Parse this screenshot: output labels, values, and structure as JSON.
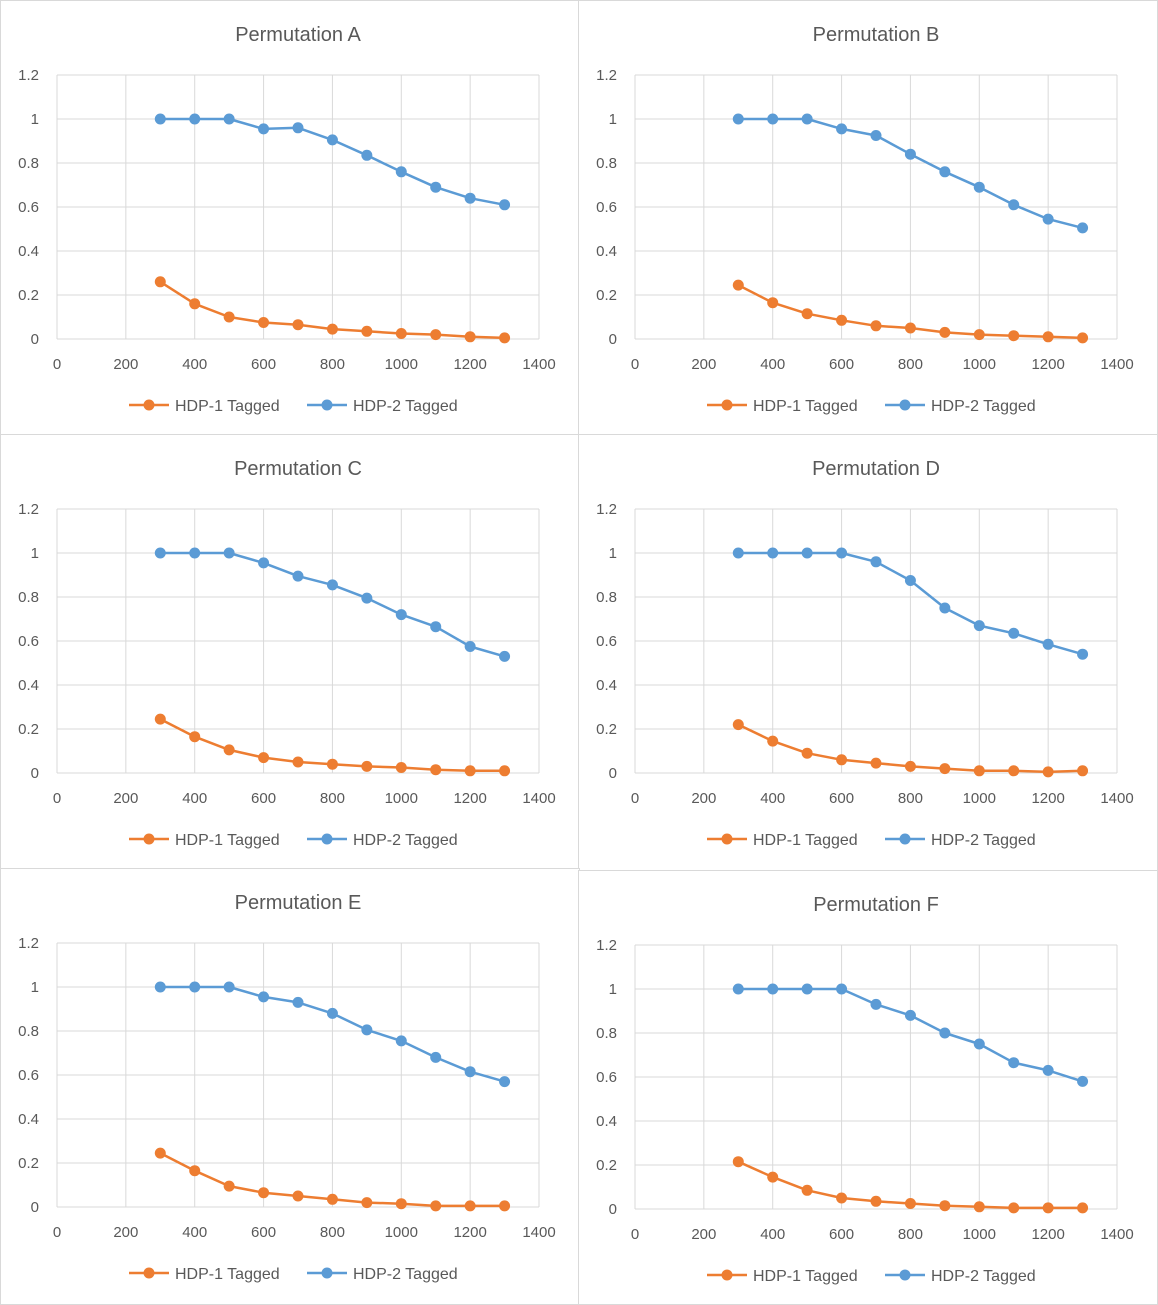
{
  "colors": {
    "hdp1": "#ED7D31",
    "hdp2": "#5B9BD5",
    "grid": "#d9d9d9",
    "text": "#595959"
  },
  "chart_data": [
    {
      "type": "line",
      "title": "Permutation A",
      "xlim": [
        0,
        1400
      ],
      "ylim": [
        0,
        1.2
      ],
      "x_ticks": [
        "0",
        "200",
        "400",
        "600",
        "800",
        "1000",
        "1200",
        "1400"
      ],
      "y_ticks": [
        "0",
        "0.2",
        "0.4",
        "0.6",
        "0.8",
        "1",
        "1.2"
      ],
      "legend": "bottom",
      "x": [
        300,
        400,
        500,
        600,
        700,
        800,
        900,
        1000,
        1100,
        1200,
        1300
      ],
      "series": [
        {
          "name": "HDP-1 Tagged",
          "values": [
            0.26,
            0.16,
            0.1,
            0.075,
            0.065,
            0.045,
            0.035,
            0.025,
            0.02,
            0.01,
            0.005
          ]
        },
        {
          "name": "HDP-2 Tagged",
          "values": [
            1.0,
            1.0,
            1.0,
            0.955,
            0.96,
            0.905,
            0.835,
            0.76,
            0.69,
            0.64,
            0.61
          ]
        }
      ]
    },
    {
      "type": "line",
      "title": "Permutation B",
      "xlim": [
        0,
        1400
      ],
      "ylim": [
        0,
        1.2
      ],
      "x_ticks": [
        "0",
        "200",
        "400",
        "600",
        "800",
        "1000",
        "1200",
        "1400"
      ],
      "y_ticks": [
        "0",
        "0.2",
        "0.4",
        "0.6",
        "0.8",
        "1",
        "1.2"
      ],
      "legend": "bottom",
      "x": [
        300,
        400,
        500,
        600,
        700,
        800,
        900,
        1000,
        1100,
        1200,
        1300
      ],
      "series": [
        {
          "name": "HDP-1 Tagged",
          "values": [
            0.245,
            0.165,
            0.115,
            0.085,
            0.06,
            0.05,
            0.03,
            0.02,
            0.015,
            0.01,
            0.005
          ]
        },
        {
          "name": "HDP-2 Tagged",
          "values": [
            1.0,
            1.0,
            1.0,
            0.955,
            0.925,
            0.84,
            0.76,
            0.69,
            0.61,
            0.545,
            0.505
          ]
        }
      ]
    },
    {
      "type": "line",
      "title": "Permutation C",
      "xlim": [
        0,
        1400
      ],
      "ylim": [
        0,
        1.2
      ],
      "x_ticks": [
        "0",
        "200",
        "400",
        "600",
        "800",
        "1000",
        "1200",
        "1400"
      ],
      "y_ticks": [
        "0",
        "0.2",
        "0.4",
        "0.6",
        "0.8",
        "1",
        "1.2"
      ],
      "legend": "bottom",
      "x": [
        300,
        400,
        500,
        600,
        700,
        800,
        900,
        1000,
        1100,
        1200,
        1300
      ],
      "series": [
        {
          "name": "HDP-1 Tagged",
          "values": [
            0.245,
            0.165,
            0.105,
            0.07,
            0.05,
            0.04,
            0.03,
            0.025,
            0.015,
            0.01,
            0.01
          ]
        },
        {
          "name": "HDP-2 Tagged",
          "values": [
            1.0,
            1.0,
            1.0,
            0.955,
            0.895,
            0.855,
            0.795,
            0.72,
            0.665,
            0.575,
            0.53
          ]
        }
      ]
    },
    {
      "type": "line",
      "title": "Permutation D",
      "xlim": [
        0,
        1400
      ],
      "ylim": [
        0,
        1.2
      ],
      "x_ticks": [
        "0",
        "200",
        "400",
        "600",
        "800",
        "1000",
        "1200",
        "1400"
      ],
      "y_ticks": [
        "0",
        "0.2",
        "0.4",
        "0.6",
        "0.8",
        "1",
        "1.2"
      ],
      "legend": "bottom",
      "x": [
        300,
        400,
        500,
        600,
        700,
        800,
        900,
        1000,
        1100,
        1200,
        1300
      ],
      "series": [
        {
          "name": "HDP-1 Tagged",
          "values": [
            0.22,
            0.145,
            0.09,
            0.06,
            0.045,
            0.03,
            0.02,
            0.01,
            0.01,
            0.005,
            0.01
          ]
        },
        {
          "name": "HDP-2 Tagged",
          "values": [
            1.0,
            1.0,
            1.0,
            1.0,
            0.96,
            0.875,
            0.75,
            0.67,
            0.635,
            0.585,
            0.54
          ]
        }
      ]
    },
    {
      "type": "line",
      "title": "Permutation E",
      "xlim": [
        0,
        1400
      ],
      "ylim": [
        0,
        1.2
      ],
      "x_ticks": [
        "0",
        "200",
        "400",
        "600",
        "800",
        "1000",
        "1200",
        "1400"
      ],
      "y_ticks": [
        "0",
        "0.2",
        "0.4",
        "0.6",
        "0.8",
        "1",
        "1.2"
      ],
      "legend": "bottom",
      "x": [
        300,
        400,
        500,
        600,
        700,
        800,
        900,
        1000,
        1100,
        1200,
        1300
      ],
      "series": [
        {
          "name": "HDP-1 Tagged",
          "values": [
            0.245,
            0.165,
            0.095,
            0.065,
            0.05,
            0.035,
            0.02,
            0.015,
            0.005,
            0.005,
            0.005
          ]
        },
        {
          "name": "HDP-2 Tagged",
          "values": [
            1.0,
            1.0,
            1.0,
            0.955,
            0.93,
            0.88,
            0.805,
            0.755,
            0.68,
            0.615,
            0.57
          ]
        }
      ]
    },
    {
      "type": "line",
      "title": "Permutation F",
      "xlim": [
        0,
        1400
      ],
      "ylim": [
        0,
        1.2
      ],
      "x_ticks": [
        "0",
        "200",
        "400",
        "600",
        "800",
        "1000",
        "1200",
        "1400"
      ],
      "y_ticks": [
        "0",
        "0.2",
        "0.4",
        "0.6",
        "0.8",
        "1",
        "1.2"
      ],
      "legend": "bottom",
      "x": [
        300,
        400,
        500,
        600,
        700,
        800,
        900,
        1000,
        1100,
        1200,
        1300
      ],
      "series": [
        {
          "name": "HDP-1 Tagged",
          "values": [
            0.215,
            0.145,
            0.085,
            0.05,
            0.035,
            0.025,
            0.015,
            0.01,
            0.005,
            0.005,
            0.005
          ]
        },
        {
          "name": "HDP-2 Tagged",
          "values": [
            1.0,
            1.0,
            1.0,
            1.0,
            0.93,
            0.88,
            0.8,
            0.75,
            0.665,
            0.63,
            0.58
          ]
        }
      ]
    }
  ]
}
